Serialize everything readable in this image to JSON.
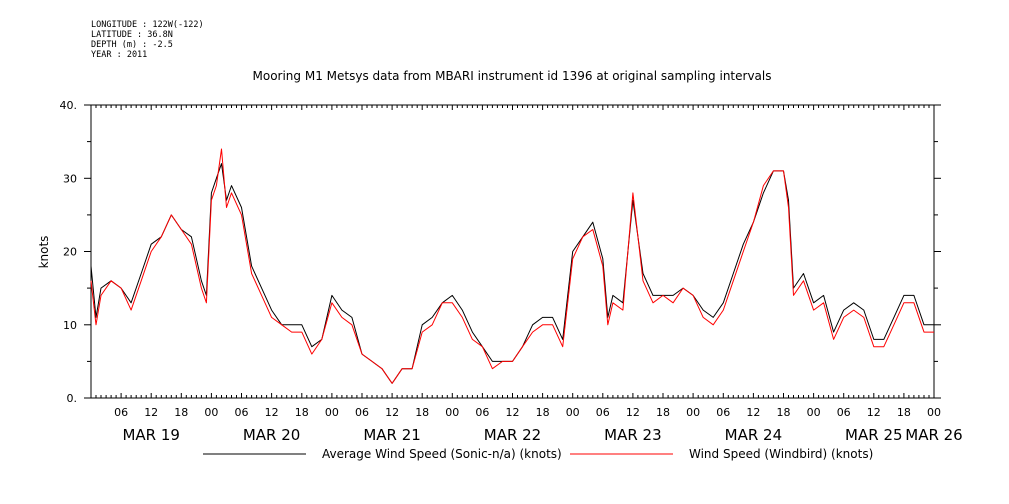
{
  "metadata": {
    "longitude": "LONGITUDE : 122W(-122)",
    "latitude": "LATITUDE : 36.8N",
    "depth": "DEPTH (m) : -2.5",
    "year": "YEAR : 2011"
  },
  "chart_data": {
    "type": "line",
    "title": "Mooring M1 Metsys data from MBARI instrument id 1396 at original sampling intervals",
    "ylabel": "knots",
    "xlabel": "",
    "ylim": [
      0,
      40
    ],
    "y_ticks": [
      0,
      10,
      20,
      30,
      40
    ],
    "y_tick_labels": [
      "0.",
      "10",
      "20",
      "30",
      "40."
    ],
    "x_range_hours": [
      0,
      168
    ],
    "x_axis_start": "MAR 19 00:00",
    "hour_tick_labels": [
      "06",
      "12",
      "18",
      "00",
      "06",
      "12",
      "18",
      "00",
      "06",
      "12",
      "18",
      "00",
      "06",
      "12",
      "18",
      "00",
      "06",
      "12",
      "18",
      "00",
      "06",
      "12",
      "18",
      "00",
      "06",
      "12",
      "18",
      "00"
    ],
    "day_labels": [
      {
        "label": "MAR 19",
        "hour": 12
      },
      {
        "label": "MAR 20",
        "hour": 36
      },
      {
        "label": "MAR 21",
        "hour": 60
      },
      {
        "label": "MAR 22",
        "hour": 84
      },
      {
        "label": "MAR 23",
        "hour": 108
      },
      {
        "label": "MAR 24",
        "hour": 132
      },
      {
        "label": "MAR 25",
        "hour": 156
      },
      {
        "label": "MAR 26",
        "hour": 168
      }
    ],
    "grid": false,
    "legend_position": "bottom",
    "series": [
      {
        "name": "Average Wind Speed (Sonic-n/a) (knots)",
        "color": "#000000",
        "x_hours": [
          0,
          1,
          2,
          4,
          6,
          8,
          10,
          12,
          14,
          16,
          18,
          20,
          22,
          23,
          24,
          25,
          26,
          27,
          28,
          30,
          32,
          34,
          36,
          38,
          40,
          42,
          44,
          46,
          48,
          50,
          52,
          54,
          56,
          58,
          60,
          62,
          64,
          66,
          68,
          70,
          72,
          74,
          76,
          78,
          80,
          82,
          84,
          86,
          88,
          90,
          92,
          94,
          96,
          98,
          100,
          102,
          103,
          104,
          106,
          108,
          110,
          112,
          114,
          116,
          118,
          120,
          122,
          124,
          126,
          128,
          130,
          132,
          134,
          136,
          138,
          139,
          140,
          142,
          144,
          146,
          148,
          150,
          152,
          154,
          156,
          158,
          160,
          162,
          164,
          166,
          168
        ],
        "values": [
          18,
          11,
          15,
          16,
          15,
          13,
          17,
          21,
          22,
          25,
          23,
          22,
          16,
          14,
          28,
          30,
          32,
          27,
          29,
          26,
          18,
          15,
          12,
          10,
          10,
          10,
          7,
          8,
          14,
          12,
          11,
          6,
          5,
          4,
          2,
          4,
          4,
          10,
          11,
          13,
          14,
          12,
          9,
          7,
          5,
          5,
          5,
          7,
          10,
          11,
          11,
          8,
          20,
          22,
          24,
          19,
          11,
          14,
          13,
          27,
          17,
          14,
          14,
          14,
          15,
          14,
          12,
          11,
          13,
          17,
          21,
          24,
          28,
          31,
          31,
          27,
          15,
          17,
          13,
          14,
          9,
          12,
          13,
          12,
          8,
          8,
          11,
          14,
          14,
          10,
          10
        ]
      },
      {
        "name": "Wind Speed (Windbird) (knots)",
        "color": "#ff0000",
        "x_hours": [
          0,
          1,
          2,
          4,
          6,
          8,
          10,
          12,
          14,
          16,
          18,
          20,
          22,
          23,
          24,
          25,
          26,
          27,
          28,
          30,
          32,
          34,
          36,
          38,
          40,
          42,
          44,
          46,
          48,
          50,
          52,
          54,
          56,
          58,
          60,
          62,
          64,
          66,
          68,
          70,
          72,
          74,
          76,
          78,
          80,
          82,
          84,
          86,
          88,
          90,
          92,
          94,
          96,
          98,
          100,
          102,
          103,
          104,
          106,
          108,
          110,
          112,
          114,
          116,
          118,
          120,
          122,
          124,
          126,
          128,
          130,
          132,
          134,
          136,
          138,
          139,
          140,
          142,
          144,
          146,
          148,
          150,
          152,
          154,
          156,
          158,
          160,
          162,
          164,
          166,
          168
        ],
        "values": [
          16,
          10,
          14,
          16,
          15,
          12,
          16,
          20,
          22,
          25,
          23,
          21,
          15,
          13,
          27,
          29,
          34,
          26,
          28,
          25,
          17,
          14,
          11,
          10,
          9,
          9,
          6,
          8,
          13,
          11,
          10,
          6,
          5,
          4,
          2,
          4,
          4,
          9,
          10,
          13,
          13,
          11,
          8,
          7,
          4,
          5,
          5,
          7,
          9,
          10,
          10,
          7,
          19,
          22,
          23,
          18,
          10,
          13,
          12,
          28,
          16,
          13,
          14,
          13,
          15,
          14,
          11,
          10,
          12,
          16,
          20,
          24,
          29,
          31,
          31,
          26,
          14,
          16,
          12,
          13,
          8,
          11,
          12,
          11,
          7,
          7,
          10,
          13,
          13,
          9,
          9
        ]
      }
    ]
  }
}
